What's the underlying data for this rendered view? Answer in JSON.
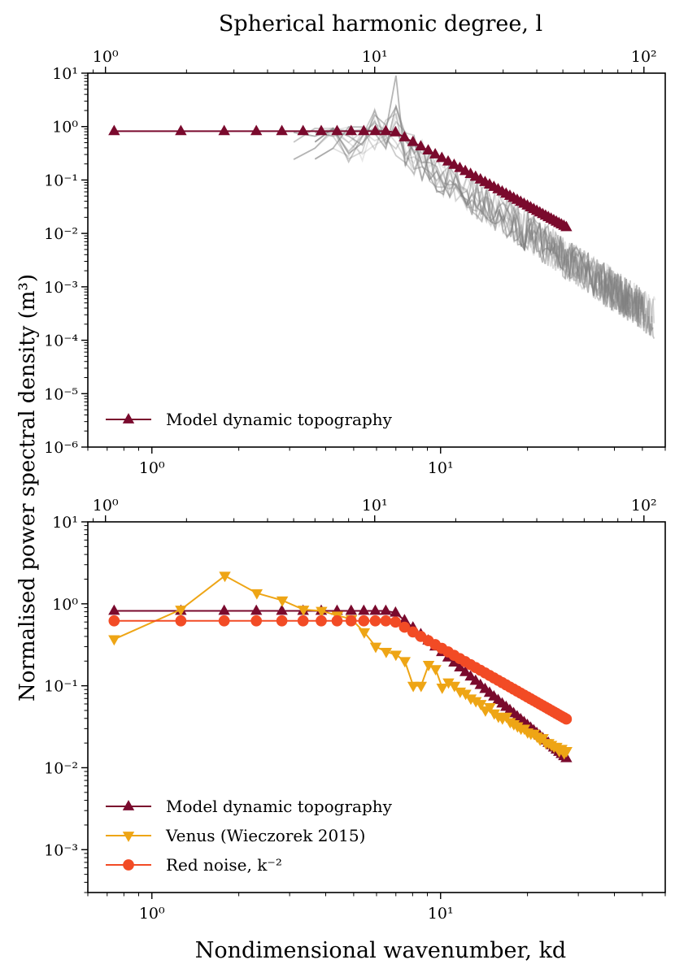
{
  "figure": {
    "top_xlabel": "Spherical harmonic degree, l",
    "bottom_xlabel": "Nondimensional wavenumber, kd",
    "ylabel": "Normalised power spectral density (m³)"
  },
  "chart_data": [
    {
      "type": "line",
      "panel": "top",
      "xscale": "log",
      "yscale": "log",
      "xlim": [
        0.6,
        60
      ],
      "ylim": [
        1e-06,
        10
      ],
      "xlabel": "",
      "secondary_xlabel": "Spherical harmonic degree, l",
      "secondary_xlim": [
        0.86,
        120
      ],
      "xticks": [
        {
          "value": 1,
          "label": "10⁰"
        },
        {
          "value": 10,
          "label": "10¹"
        }
      ],
      "secondary_xticks": [
        {
          "value": 1,
          "label": "10⁰"
        },
        {
          "value": 10,
          "label": "10¹"
        },
        {
          "value": 100,
          "label": "10²"
        }
      ],
      "yticks": [
        {
          "value": 10,
          "label": "10¹"
        },
        {
          "value": 1,
          "label": "10⁰"
        },
        {
          "value": 0.1,
          "label": "10⁻¹"
        },
        {
          "value": 0.01,
          "label": "10⁻²"
        },
        {
          "value": 0.001,
          "label": "10⁻³"
        },
        {
          "value": 0.0001,
          "label": "10⁻⁴"
        },
        {
          "value": 1e-05,
          "label": "10⁻⁵"
        },
        {
          "value": 1e-06,
          "label": "10⁻⁶"
        }
      ],
      "legend": {
        "location": "lower-left",
        "entries": [
          "Model dynamic topography"
        ]
      },
      "series": [
        {
          "name": "Model dynamic topography",
          "color": "#7a0a2d",
          "marker": "triangle-up",
          "flat_value": 0.82,
          "kd_start": 0.74,
          "kd_step_linear": 0.52,
          "flat_end": 6.86,
          "slope_exponent": -3,
          "kd_end": 27.5
        }
      ],
      "background_spectra": {
        "description": "grey observed spectra",
        "count": 12,
        "color": "#808080",
        "l_start": 5,
        "l_end": 110,
        "peak_l": 12,
        "peak_value": 9
      }
    },
    {
      "type": "line",
      "panel": "bottom",
      "xscale": "log",
      "yscale": "log",
      "xlim": [
        0.6,
        60
      ],
      "ylim": [
        0.0003,
        10
      ],
      "xlabel": "Nondimensional wavenumber, kd",
      "secondary_xlim": [
        0.86,
        120
      ],
      "xticks": [
        {
          "value": 1,
          "label": "10⁰"
        },
        {
          "value": 10,
          "label": "10¹"
        }
      ],
      "secondary_xticks": [
        {
          "value": 1,
          "label": "10⁰"
        },
        {
          "value": 10,
          "label": "10¹"
        },
        {
          "value": 100,
          "label": "10²"
        }
      ],
      "yticks": [
        {
          "value": 10,
          "label": "10¹"
        },
        {
          "value": 1,
          "label": "10⁰"
        },
        {
          "value": 0.1,
          "label": "10⁻¹"
        },
        {
          "value": 0.01,
          "label": "10⁻²"
        },
        {
          "value": 0.001,
          "label": "10⁻³"
        }
      ],
      "legend": {
        "location": "lower-left",
        "entries": [
          "Model dynamic topography",
          "Venus (Wieczorek 2015)",
          "Red noise, k⁻²"
        ]
      },
      "series": [
        {
          "name": "Model dynamic topography",
          "color": "#7a0a2d",
          "marker": "triangle-up",
          "flat_value": 0.82,
          "kd_start": 0.74,
          "kd_step_linear": 0.52,
          "flat_end": 6.86,
          "slope_exponent": -3,
          "kd_end": 27.5
        },
        {
          "name": "Venus (Wieczorek 2015)",
          "color": "#eea515",
          "marker": "triangle-down",
          "x": [
            0.74,
            1.26,
            1.79,
            2.31,
            2.83,
            3.35,
            3.87,
            4.39,
            4.91,
            5.44,
            5.96,
            6.48,
            7.0,
            7.52,
            8.04,
            8.56,
            9.09,
            9.61,
            10.13,
            10.65,
            11.17,
            11.69,
            12.21,
            12.73,
            13.25,
            13.78,
            14.3,
            14.82,
            15.34,
            15.86,
            16.38,
            16.9,
            17.42,
            17.94,
            18.47,
            18.99,
            19.51,
            20.03,
            20.55,
            21.07,
            21.59,
            22.11,
            22.63,
            23.16,
            23.68,
            24.2,
            24.72,
            25.24,
            25.76,
            26.28,
            26.8,
            27.32
          ],
          "values": [
            0.37,
            0.85,
            2.2,
            1.35,
            1.1,
            0.85,
            0.82,
            0.72,
            0.65,
            0.45,
            0.3,
            0.26,
            0.24,
            0.2,
            0.1,
            0.1,
            0.18,
            0.16,
            0.095,
            0.11,
            0.1,
            0.085,
            0.08,
            0.07,
            0.065,
            0.06,
            0.05,
            0.055,
            0.046,
            0.042,
            0.04,
            0.042,
            0.036,
            0.034,
            0.032,
            0.03,
            0.03,
            0.027,
            0.026,
            0.026,
            0.024,
            0.022,
            0.023,
            0.02,
            0.02,
            0.019,
            0.018,
            0.018,
            0.016,
            0.017,
            0.015,
            0.016
          ]
        },
        {
          "name": "Red noise, k⁻²",
          "color": "#f24b25",
          "marker": "circle",
          "flat_value": 0.62,
          "kd_start": 0.74,
          "kd_step_linear": 0.52,
          "flat_end": 6.86,
          "slope_exponent": -2,
          "kd_end": 27.5
        }
      ]
    }
  ]
}
